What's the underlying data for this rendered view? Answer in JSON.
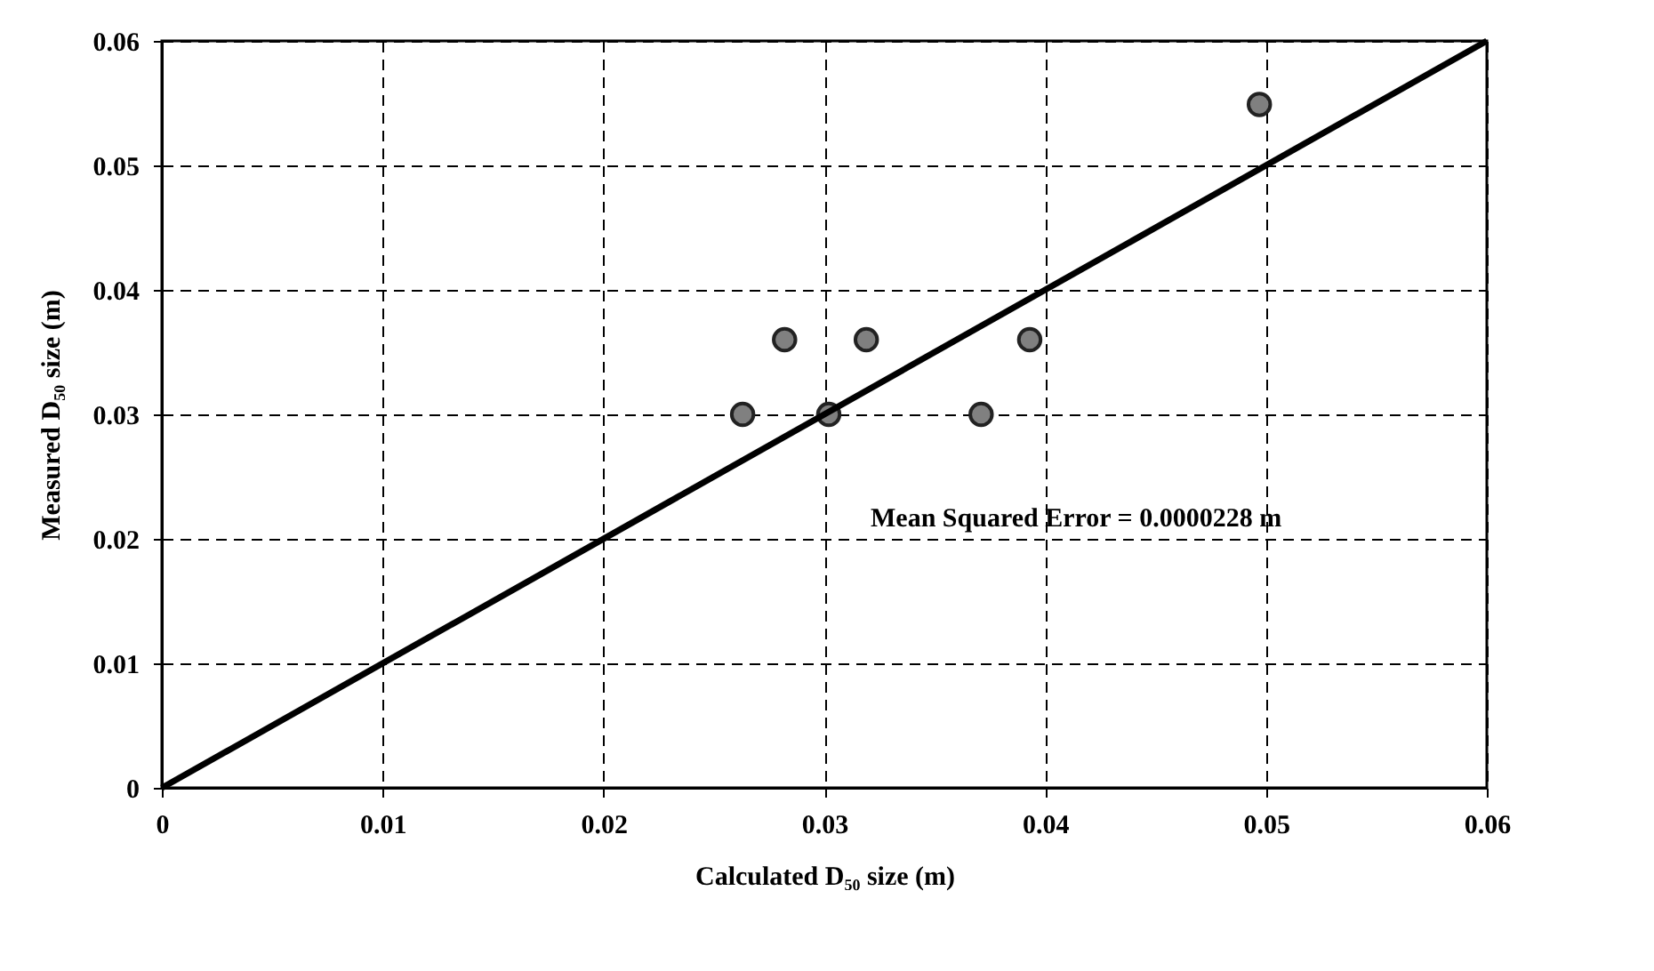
{
  "chart_data": {
    "type": "scatter",
    "xlabel": "Calculated D₅₀ size (m)",
    "ylabel": "Measured D₅₀ size (m)",
    "xlim": [
      0,
      0.06
    ],
    "ylim": [
      0,
      0.06
    ],
    "xticks": [
      0,
      0.01,
      0.02,
      0.03,
      0.04,
      0.05,
      0.06
    ],
    "yticks": [
      0,
      0.01,
      0.02,
      0.03,
      0.04,
      0.05,
      0.06
    ],
    "grid": true,
    "annotations": [
      "Mean Squared Error = 0.0000228 m"
    ],
    "series": [
      {
        "color": "#808080",
        "marker": "circle",
        "x": [
          0.0263,
          0.0282,
          0.0302,
          0.0319,
          0.0371,
          0.0393,
          0.0497
        ],
        "values": [
          0.03,
          0.036,
          0.03,
          0.036,
          0.03,
          0.036,
          0.0549
        ]
      },
      {
        "type": "line",
        "color": "#000000",
        "x": [
          0,
          0.06
        ],
        "values": [
          0,
          0.06
        ],
        "line_style": "solid"
      }
    ]
  }
}
